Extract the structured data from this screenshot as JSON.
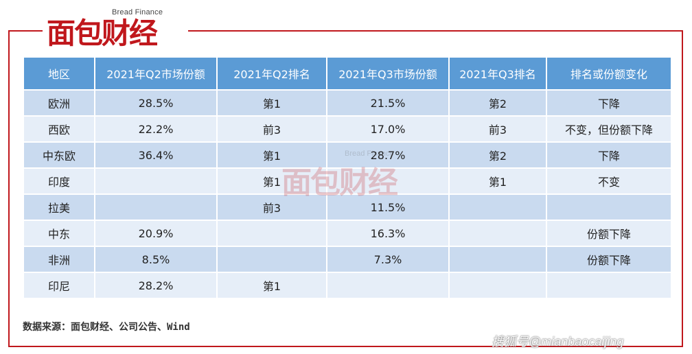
{
  "logo": {
    "en": "Bread Finance",
    "cn": "面包财经"
  },
  "table": {
    "headers": [
      "地区",
      "2021年Q2市场份额",
      "2021年Q2排名",
      "2021年Q3市场份额",
      "2021年Q3排名",
      "排名或份额变化"
    ],
    "rows": [
      [
        "欧洲",
        "28.5%",
        "第1",
        "21.5%",
        "第2",
        "下降"
      ],
      [
        "西欧",
        "22.2%",
        "前3",
        "17.0%",
        "前3",
        "不变，但份额下降"
      ],
      [
        "中东欧",
        "36.4%",
        "第1",
        "28.7%",
        "第2",
        "下降"
      ],
      [
        "印度",
        "",
        "第1",
        "",
        "第1",
        "不变"
      ],
      [
        "拉美",
        "",
        "前3",
        "11.5%",
        "",
        ""
      ],
      [
        "中东",
        "20.9%",
        "",
        "16.3%",
        "",
        "份额下降"
      ],
      [
        "非洲",
        "8.5%",
        "",
        "7.3%",
        "",
        "份额下降"
      ],
      [
        "印尼",
        "28.2%",
        "第1",
        "",
        "",
        ""
      ]
    ]
  },
  "watermark": {
    "en": "Bread Finance",
    "cn": "面包财经"
  },
  "source": "数据来源：面包财经、公司公告、Wind",
  "sohu_watermark": "搜狐号@mianbaocaijing",
  "colors": {
    "accent": "#c0171c",
    "header_bg": "#5b9bd5",
    "row_odd": "#c9daef",
    "row_even": "#e6eef8"
  }
}
